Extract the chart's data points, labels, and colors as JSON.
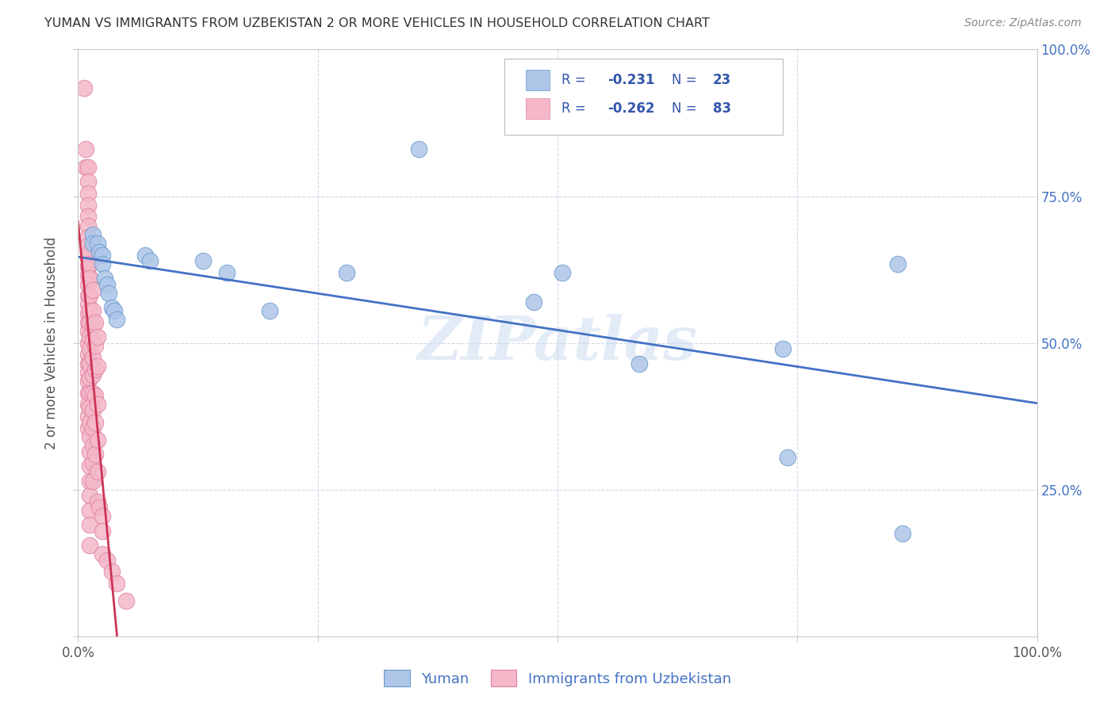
{
  "title": "YUMAN VS IMMIGRANTS FROM UZBEKISTAN 2 OR MORE VEHICLES IN HOUSEHOLD CORRELATION CHART",
  "source": "Source: ZipAtlas.com",
  "ylabel": "2 or more Vehicles in Household",
  "yuman_color": "#aec6e8",
  "uzbekistan_color": "#f4b8c8",
  "yuman_edge_color": "#6699cc",
  "uzbekistan_edge_color": "#e080a0",
  "yuman_line_color": "#4472c4",
  "uzbekistan_line_color": "#cc3355",
  "uzbekistan_dash_color": "#e8a0b8",
  "legend_label_color": "#3355aa",
  "legend_value_color": "#3355aa",
  "watermark": "ZIPatlas",
  "watermark_color": "#c8d8ee",
  "yuman_scatter": [
    [
      0.015,
      0.685
    ],
    [
      0.015,
      0.67
    ],
    [
      0.02,
      0.67
    ],
    [
      0.022,
      0.655
    ],
    [
      0.025,
      0.65
    ],
    [
      0.025,
      0.635
    ],
    [
      0.028,
      0.61
    ],
    [
      0.03,
      0.6
    ],
    [
      0.032,
      0.585
    ],
    [
      0.035,
      0.56
    ],
    [
      0.038,
      0.555
    ],
    [
      0.04,
      0.54
    ],
    [
      0.07,
      0.65
    ],
    [
      0.075,
      0.64
    ],
    [
      0.13,
      0.64
    ],
    [
      0.155,
      0.62
    ],
    [
      0.2,
      0.555
    ],
    [
      0.28,
      0.62
    ],
    [
      0.355,
      0.83
    ],
    [
      0.475,
      0.57
    ],
    [
      0.505,
      0.62
    ],
    [
      0.585,
      0.465
    ],
    [
      0.735,
      0.49
    ],
    [
      0.855,
      0.635
    ],
    [
      0.74,
      0.305
    ],
    [
      0.86,
      0.175
    ]
  ],
  "uzbekistan_scatter": [
    [
      0.006,
      0.935
    ],
    [
      0.008,
      0.83
    ],
    [
      0.008,
      0.8
    ],
    [
      0.01,
      0.8
    ],
    [
      0.01,
      0.775
    ],
    [
      0.01,
      0.755
    ],
    [
      0.01,
      0.735
    ],
    [
      0.01,
      0.715
    ],
    [
      0.01,
      0.7
    ],
    [
      0.01,
      0.68
    ],
    [
      0.01,
      0.665
    ],
    [
      0.01,
      0.645
    ],
    [
      0.01,
      0.63
    ],
    [
      0.01,
      0.615
    ],
    [
      0.01,
      0.6
    ],
    [
      0.01,
      0.58
    ],
    [
      0.01,
      0.565
    ],
    [
      0.01,
      0.55
    ],
    [
      0.01,
      0.535
    ],
    [
      0.01,
      0.52
    ],
    [
      0.01,
      0.5
    ],
    [
      0.01,
      0.48
    ],
    [
      0.01,
      0.465
    ],
    [
      0.01,
      0.45
    ],
    [
      0.01,
      0.435
    ],
    [
      0.01,
      0.415
    ],
    [
      0.01,
      0.395
    ],
    [
      0.01,
      0.375
    ],
    [
      0.01,
      0.355
    ],
    [
      0.012,
      0.655
    ],
    [
      0.012,
      0.635
    ],
    [
      0.012,
      0.61
    ],
    [
      0.012,
      0.58
    ],
    [
      0.012,
      0.555
    ],
    [
      0.012,
      0.535
    ],
    [
      0.012,
      0.51
    ],
    [
      0.012,
      0.49
    ],
    [
      0.012,
      0.465
    ],
    [
      0.012,
      0.44
    ],
    [
      0.012,
      0.415
    ],
    [
      0.012,
      0.39
    ],
    [
      0.012,
      0.365
    ],
    [
      0.012,
      0.34
    ],
    [
      0.012,
      0.315
    ],
    [
      0.012,
      0.29
    ],
    [
      0.012,
      0.265
    ],
    [
      0.012,
      0.24
    ],
    [
      0.012,
      0.215
    ],
    [
      0.012,
      0.19
    ],
    [
      0.012,
      0.155
    ],
    [
      0.015,
      0.59
    ],
    [
      0.015,
      0.555
    ],
    [
      0.015,
      0.53
    ],
    [
      0.015,
      0.505
    ],
    [
      0.015,
      0.475
    ],
    [
      0.015,
      0.445
    ],
    [
      0.015,
      0.415
    ],
    [
      0.015,
      0.385
    ],
    [
      0.015,
      0.355
    ],
    [
      0.015,
      0.325
    ],
    [
      0.015,
      0.295
    ],
    [
      0.015,
      0.265
    ],
    [
      0.018,
      0.535
    ],
    [
      0.018,
      0.495
    ],
    [
      0.018,
      0.455
    ],
    [
      0.018,
      0.41
    ],
    [
      0.018,
      0.365
    ],
    [
      0.018,
      0.31
    ],
    [
      0.02,
      0.51
    ],
    [
      0.02,
      0.46
    ],
    [
      0.02,
      0.395
    ],
    [
      0.02,
      0.335
    ],
    [
      0.02,
      0.28
    ],
    [
      0.02,
      0.23
    ],
    [
      0.022,
      0.22
    ],
    [
      0.025,
      0.205
    ],
    [
      0.025,
      0.18
    ],
    [
      0.025,
      0.14
    ],
    [
      0.03,
      0.13
    ],
    [
      0.035,
      0.11
    ],
    [
      0.04,
      0.09
    ],
    [
      0.05,
      0.06
    ]
  ],
  "xlim": [
    0.0,
    1.0
  ],
  "ylim": [
    0.0,
    1.0
  ],
  "xticks": [
    0.0,
    0.25,
    0.5,
    0.75,
    1.0
  ],
  "xtick_labels": [
    "0.0%",
    "",
    "",
    "",
    "100.0%"
  ],
  "yticks": [
    0.0,
    0.25,
    0.5,
    0.75,
    1.0
  ],
  "ytick_labels_right": [
    "",
    "25.0%",
    "50.0%",
    "75.0%",
    "100.0%"
  ],
  "background_color": "#ffffff",
  "grid_color": "#d0d8e8",
  "title_color": "#333333",
  "axis_color": "#cccccc"
}
